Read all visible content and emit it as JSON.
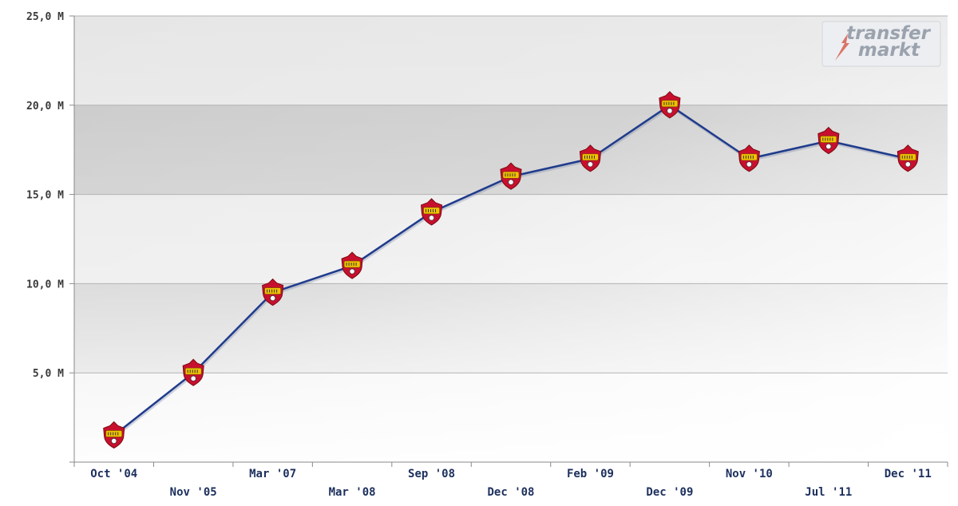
{
  "watermark": {
    "line1": "transfer",
    "line2": "markt"
  },
  "chart_data": {
    "type": "line",
    "title": "",
    "xlabel": "",
    "ylabel": "",
    "categories": [
      "Oct '04",
      "Nov '05",
      "Mar '07",
      "Mar '08",
      "Sep '08",
      "Dec '08",
      "Feb '09",
      "Dec '09",
      "Nov '10",
      "Jul '11",
      "Dec '11"
    ],
    "series": [
      {
        "values": [
          1.5,
          5.0,
          9.5,
          11.0,
          14.0,
          16.0,
          17.0,
          20.0,
          17.0,
          18.0,
          17.0
        ]
      }
    ],
    "ylim": [
      0,
      25
    ],
    "yticks": [
      5,
      10,
      15,
      20,
      25
    ],
    "ytick_labels": [
      "5,0 M",
      "10,0 M",
      "15,0 M",
      "20,0 M",
      "25,0 M"
    ],
    "grid": true,
    "legend": "none",
    "colors": {
      "line": "#1f3b8c",
      "marker_outer": "#c8102e",
      "marker_inner": "#f2c200",
      "band_dark": "#c4c4c4",
      "band_light": "#e6e6e6"
    }
  }
}
